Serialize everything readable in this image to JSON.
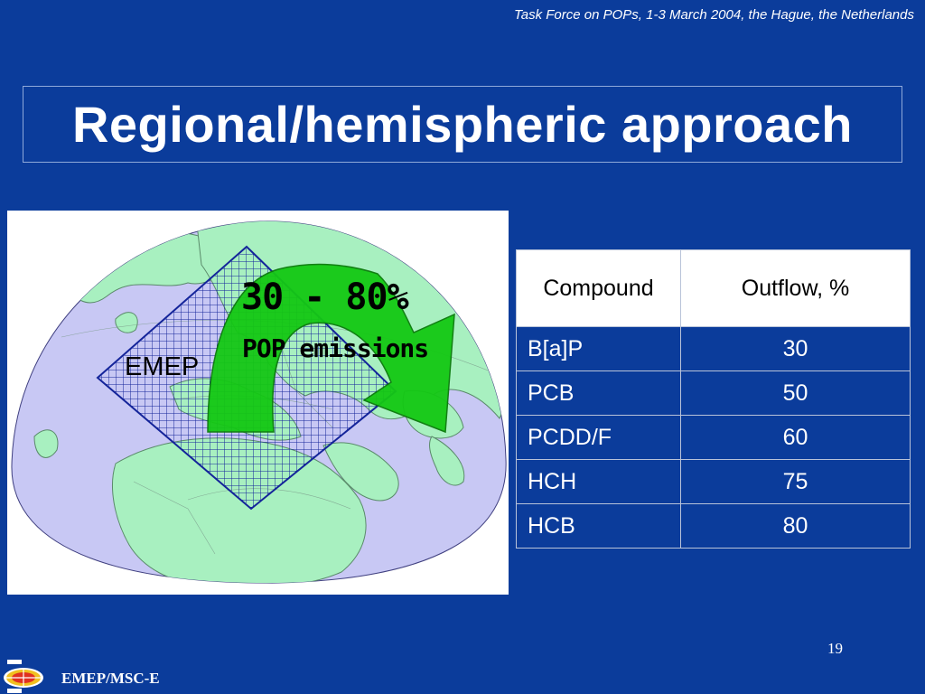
{
  "header": {
    "event_note": "Task Force on POPs, 1-3 March 2004, the Hague, the Netherlands"
  },
  "slide": {
    "title": "Regional/hemispheric approach"
  },
  "map": {
    "region_label": "EMEP",
    "outflow_range": "30 - 80%",
    "outflow_caption": "POP emissions",
    "colors": {
      "ocean": "#c8c8f4",
      "land": "#a8f0c0",
      "grid": "#14249a",
      "arrow": "#10c810"
    }
  },
  "table": {
    "headers": [
      "Compound",
      "Outflow, %"
    ],
    "rows": [
      {
        "compound": "B[a]P",
        "outflow": "30"
      },
      {
        "compound": "PCB",
        "outflow": "50"
      },
      {
        "compound": "PCDD/F",
        "outflow": "60"
      },
      {
        "compound": "HCH",
        "outflow": "75"
      },
      {
        "compound": "HCB",
        "outflow": "80"
      }
    ]
  },
  "footer": {
    "page_number": "19",
    "organization": "EMEP/MSC-E",
    "logo_icon": "msc-e-logo-icon"
  },
  "theme": {
    "background": "#0b3c9b",
    "text": "#ffffff"
  }
}
